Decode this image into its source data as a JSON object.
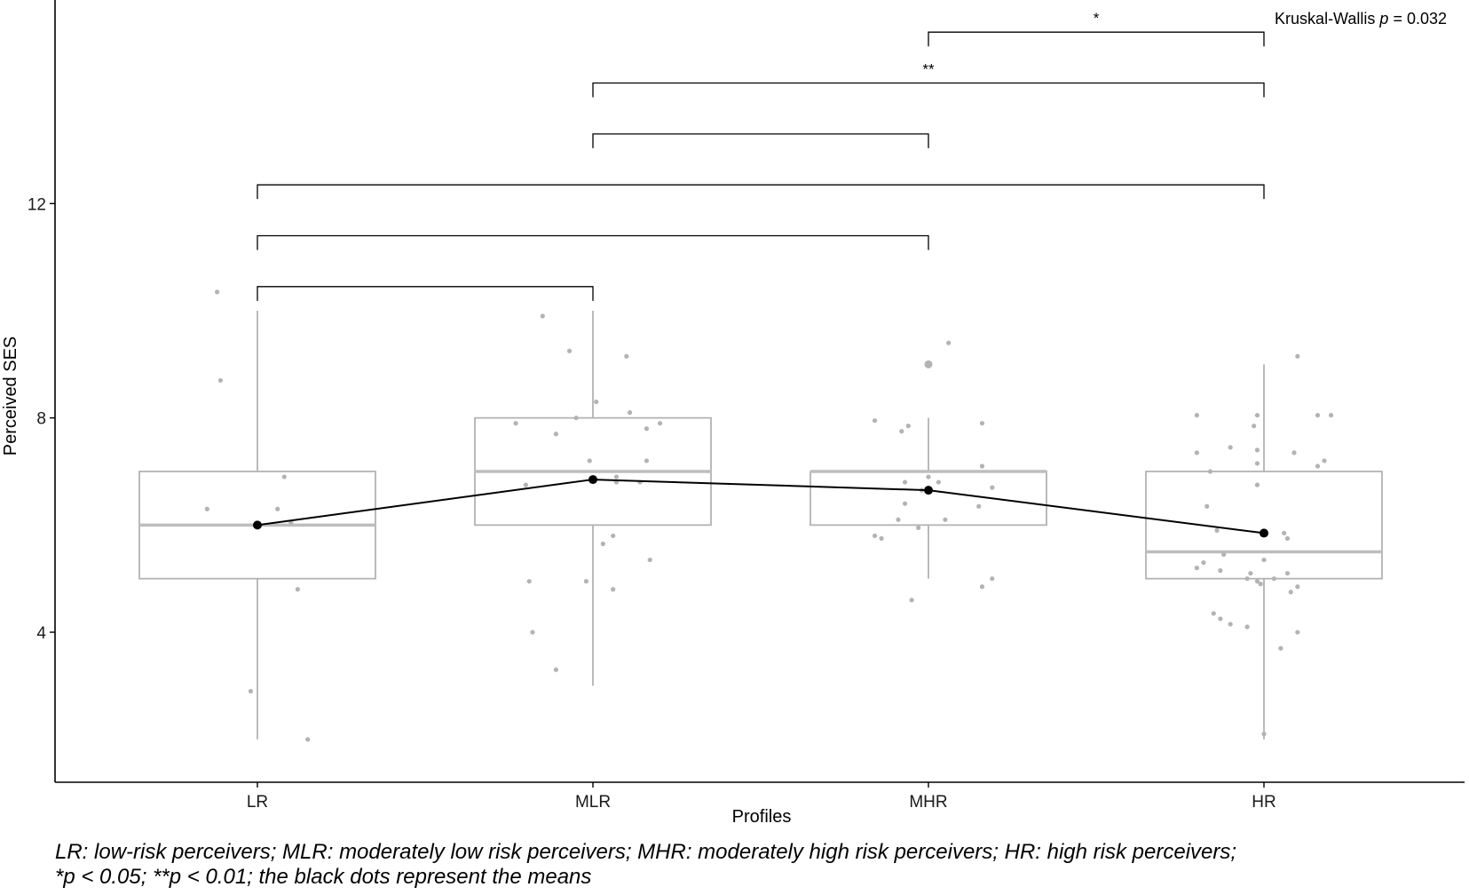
{
  "chart_data": {
    "type": "box",
    "xlabel": "Profiles",
    "ylabel": "Perceived SES",
    "categories": [
      "LR",
      "MLR",
      "MHR",
      "HR"
    ],
    "yticks": [
      4,
      8,
      12
    ],
    "ylim": [
      1.2,
      15.8
    ],
    "grid": false,
    "colors": {
      "box": "#b3b3b3",
      "median": "#bdbdbd",
      "points": "#b3b3b3",
      "means": "#000000",
      "axis": "#000000"
    },
    "boxes": [
      {
        "category": "LR",
        "whisker_low": 2,
        "q1": 5,
        "median": 6,
        "q3": 7,
        "whisker_high": 10
      },
      {
        "category": "MLR",
        "whisker_low": 3,
        "q1": 6,
        "median": 7,
        "q3": 8,
        "whisker_high": 10
      },
      {
        "category": "MHR",
        "whisker_low": 5,
        "q1": 6,
        "median": 7,
        "q3": 7,
        "whisker_high": 8
      },
      {
        "category": "HR",
        "whisker_low": 2,
        "q1": 5,
        "median": 5.5,
        "q3": 7,
        "whisker_high": 9
      }
    ],
    "outliers": [
      {
        "category": "MHR",
        "value": 9
      }
    ],
    "means": [
      {
        "category": "LR",
        "value": 6.0
      },
      {
        "category": "MLR",
        "value": 6.85
      },
      {
        "category": "MHR",
        "value": 6.65
      },
      {
        "category": "HR",
        "value": 5.85
      }
    ],
    "jitter_points": [
      {
        "category": "LR",
        "value": 10.35,
        "offset": -0.12
      },
      {
        "category": "LR",
        "value": 8.7,
        "offset": -0.11
      },
      {
        "category": "LR",
        "value": 6.9,
        "offset": 0.08
      },
      {
        "category": "LR",
        "value": 6.3,
        "offset": -0.15
      },
      {
        "category": "LR",
        "value": 6.3,
        "offset": 0.06
      },
      {
        "category": "LR",
        "value": 6.05,
        "offset": 0.1
      },
      {
        "category": "LR",
        "value": 4.8,
        "offset": 0.12
      },
      {
        "category": "LR",
        "value": 2.9,
        "offset": -0.02
      },
      {
        "category": "LR",
        "value": 2.0,
        "offset": 0.15
      },
      {
        "category": "MLR",
        "value": 9.9,
        "offset": -0.15
      },
      {
        "category": "MLR",
        "value": 9.25,
        "offset": -0.07
      },
      {
        "category": "MLR",
        "value": 9.15,
        "offset": 0.1
      },
      {
        "category": "MLR",
        "value": 8.3,
        "offset": 0.01
      },
      {
        "category": "MLR",
        "value": 8.1,
        "offset": 0.11
      },
      {
        "category": "MLR",
        "value": 8.0,
        "offset": -0.05
      },
      {
        "category": "MLR",
        "value": 7.9,
        "offset": -0.23
      },
      {
        "category": "MLR",
        "value": 7.9,
        "offset": 0.2
      },
      {
        "category": "MLR",
        "value": 7.8,
        "offset": 0.16
      },
      {
        "category": "MLR",
        "value": 7.7,
        "offset": -0.11
      },
      {
        "category": "MLR",
        "value": 7.2,
        "offset": -0.01
      },
      {
        "category": "MLR",
        "value": 7.2,
        "offset": 0.16
      },
      {
        "category": "MLR",
        "value": 6.9,
        "offset": 0.07
      },
      {
        "category": "MLR",
        "value": 6.8,
        "offset": 0.14
      },
      {
        "category": "MLR",
        "value": 6.8,
        "offset": 0.07
      },
      {
        "category": "MLR",
        "value": 6.75,
        "offset": -0.2
      },
      {
        "category": "MLR",
        "value": 5.8,
        "offset": 0.06
      },
      {
        "category": "MLR",
        "value": 5.65,
        "offset": 0.03
      },
      {
        "category": "MLR",
        "value": 5.35,
        "offset": 0.17
      },
      {
        "category": "MLR",
        "value": 4.95,
        "offset": -0.19
      },
      {
        "category": "MLR",
        "value": 4.95,
        "offset": -0.02
      },
      {
        "category": "MLR",
        "value": 4.8,
        "offset": 0.06
      },
      {
        "category": "MLR",
        "value": 4.0,
        "offset": -0.18
      },
      {
        "category": "MLR",
        "value": 3.3,
        "offset": -0.11
      },
      {
        "category": "MHR",
        "value": 9.4,
        "offset": 0.06
      },
      {
        "category": "MHR",
        "value": 7.95,
        "offset": -0.16
      },
      {
        "category": "MHR",
        "value": 7.9,
        "offset": 0.16
      },
      {
        "category": "MHR",
        "value": 7.85,
        "offset": -0.06
      },
      {
        "category": "MHR",
        "value": 7.75,
        "offset": -0.08
      },
      {
        "category": "MHR",
        "value": 7.1,
        "offset": 0.16
      },
      {
        "category": "MHR",
        "value": 6.9,
        "offset": 0.0
      },
      {
        "category": "MHR",
        "value": 6.8,
        "offset": 0.03
      },
      {
        "category": "MHR",
        "value": 6.8,
        "offset": -0.07
      },
      {
        "category": "MHR",
        "value": 6.7,
        "offset": 0.19
      },
      {
        "category": "MHR",
        "value": 6.65,
        "offset": -0.02
      },
      {
        "category": "MHR",
        "value": 6.4,
        "offset": -0.07
      },
      {
        "category": "MHR",
        "value": 6.35,
        "offset": 0.15
      },
      {
        "category": "MHR",
        "value": 6.1,
        "offset": -0.09
      },
      {
        "category": "MHR",
        "value": 6.1,
        "offset": 0.05
      },
      {
        "category": "MHR",
        "value": 5.95,
        "offset": -0.03
      },
      {
        "category": "MHR",
        "value": 5.8,
        "offset": -0.16
      },
      {
        "category": "MHR",
        "value": 5.75,
        "offset": -0.14
      },
      {
        "category": "MHR",
        "value": 5.0,
        "offset": 0.19
      },
      {
        "category": "MHR",
        "value": 4.85,
        "offset": 0.16
      },
      {
        "category": "MHR",
        "value": 4.6,
        "offset": -0.05
      },
      {
        "category": "HR",
        "value": 9.15,
        "offset": 0.1
      },
      {
        "category": "HR",
        "value": 8.05,
        "offset": -0.2
      },
      {
        "category": "HR",
        "value": 8.05,
        "offset": -0.02
      },
      {
        "category": "HR",
        "value": 8.05,
        "offset": 0.16
      },
      {
        "category": "HR",
        "value": 8.05,
        "offset": 0.2
      },
      {
        "category": "HR",
        "value": 7.85,
        "offset": -0.03
      },
      {
        "category": "HR",
        "value": 7.45,
        "offset": -0.1
      },
      {
        "category": "HR",
        "value": 7.4,
        "offset": -0.02
      },
      {
        "category": "HR",
        "value": 7.35,
        "offset": -0.2
      },
      {
        "category": "HR",
        "value": 7.35,
        "offset": 0.09
      },
      {
        "category": "HR",
        "value": 7.2,
        "offset": 0.18
      },
      {
        "category": "HR",
        "value": 7.1,
        "offset": 0.16
      },
      {
        "category": "HR",
        "value": 7.15,
        "offset": -0.02
      },
      {
        "category": "HR",
        "value": 7.0,
        "offset": -0.16
      },
      {
        "category": "HR",
        "value": 6.75,
        "offset": -0.02
      },
      {
        "category": "HR",
        "value": 6.35,
        "offset": -0.17
      },
      {
        "category": "HR",
        "value": 5.9,
        "offset": -0.14
      },
      {
        "category": "HR",
        "value": 5.85,
        "offset": 0.06
      },
      {
        "category": "HR",
        "value": 5.75,
        "offset": 0.07
      },
      {
        "category": "HR",
        "value": 5.45,
        "offset": -0.12
      },
      {
        "category": "HR",
        "value": 5.35,
        "offset": 0.0
      },
      {
        "category": "HR",
        "value": 5.3,
        "offset": -0.18
      },
      {
        "category": "HR",
        "value": 5.2,
        "offset": -0.2
      },
      {
        "category": "HR",
        "value": 5.15,
        "offset": -0.13
      },
      {
        "category": "HR",
        "value": 5.1,
        "offset": -0.04
      },
      {
        "category": "HR",
        "value": 5.1,
        "offset": 0.07
      },
      {
        "category": "HR",
        "value": 5.0,
        "offset": -0.05
      },
      {
        "category": "HR",
        "value": 5.0,
        "offset": 0.03
      },
      {
        "category": "HR",
        "value": 4.95,
        "offset": -0.02
      },
      {
        "category": "HR",
        "value": 4.9,
        "offset": -0.01
      },
      {
        "category": "HR",
        "value": 4.85,
        "offset": 0.1
      },
      {
        "category": "HR",
        "value": 4.75,
        "offset": 0.08
      },
      {
        "category": "HR",
        "value": 4.35,
        "offset": -0.15
      },
      {
        "category": "HR",
        "value": 4.25,
        "offset": -0.13
      },
      {
        "category": "HR",
        "value": 4.15,
        "offset": -0.1
      },
      {
        "category": "HR",
        "value": 4.1,
        "offset": -0.05
      },
      {
        "category": "HR",
        "value": 4.0,
        "offset": 0.1
      },
      {
        "category": "HR",
        "value": 3.7,
        "offset": 0.05
      },
      {
        "category": "HR",
        "value": 2.1,
        "offset": 0.0
      }
    ],
    "comparisons": [
      {
        "from": "LR",
        "to": "MLR",
        "y": 10.45,
        "label": ""
      },
      {
        "from": "LR",
        "to": "MHR",
        "y": 11.4,
        "label": ""
      },
      {
        "from": "LR",
        "to": "HR",
        "y": 12.35,
        "label": ""
      },
      {
        "from": "MLR",
        "to": "MHR",
        "y": 13.3,
        "label": ""
      },
      {
        "from": "MLR",
        "to": "HR",
        "y": 14.25,
        "label": "**"
      },
      {
        "from": "MHR",
        "to": "HR",
        "y": 15.2,
        "label": "*"
      }
    ],
    "test_label": "Kruskal-Wallis",
    "test_p_symbol": "p",
    "test_p_value": "= 0.032"
  },
  "caption": {
    "line1": "LR: low-risk perceivers; MLR: moderately low risk perceivers; MHR: moderately high risk perceivers; HR: high risk perceivers;",
    "line2": "*p < 0.05; **p < 0.01; the black dots represent the means"
  }
}
